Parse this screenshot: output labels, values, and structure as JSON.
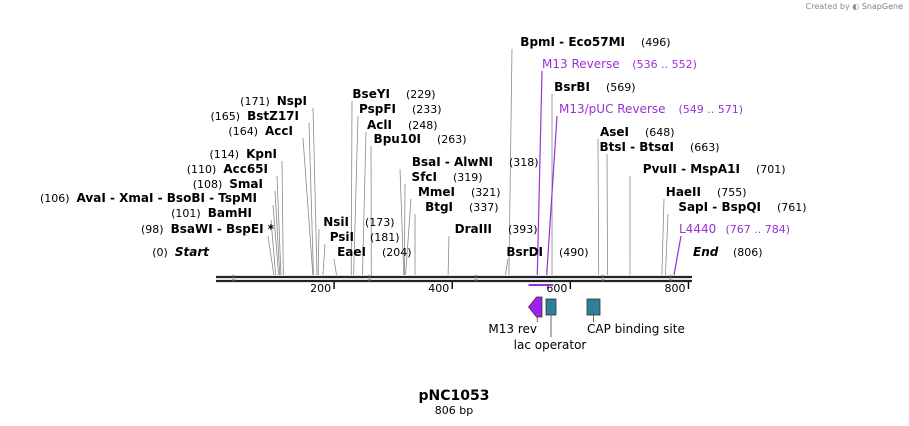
{
  "credit": {
    "prefix": "Created by",
    "brand": "SnapGene"
  },
  "plasmid": {
    "name": "pNC1053",
    "length_label": "806 bp"
  },
  "colors": {
    "text": "#000000",
    "primer": "#9b30d6",
    "leader_line": "#888888",
    "backbone": "#222222",
    "feature_teal": "#2e7f99",
    "feature_purple": "#a020f0"
  },
  "ruler": {
    "total_bp": 806,
    "tick_labels": [
      "200",
      "400",
      "600",
      "800"
    ]
  },
  "sites": [
    {
      "id": "start",
      "name": "Start",
      "pos_label": "(0)",
      "pos": 0,
      "style": "start"
    },
    {
      "id": "bsawi",
      "name": "BsaWI  -  BspEI *",
      "pos_label": "(98)",
      "pos": 98
    },
    {
      "id": "bamhi",
      "name": "BamHI",
      "pos_label": "(101)",
      "pos": 101
    },
    {
      "id": "avai",
      "name": "AvaI  -  XmaI  -  BsoBI  -  TspMI",
      "pos_label": "(106)",
      "pos": 106
    },
    {
      "id": "smai",
      "name": "SmaI",
      "pos_label": "(108)",
      "pos": 108
    },
    {
      "id": "acc65i",
      "name": "Acc65I",
      "pos_label": "(110)",
      "pos": 110
    },
    {
      "id": "kpni",
      "name": "KpnI",
      "pos_label": "(114)",
      "pos": 114
    },
    {
      "id": "acci",
      "name": "AccI",
      "pos_label": "(164)",
      "pos": 164
    },
    {
      "id": "bstz17i",
      "name": "BstZ17I",
      "pos_label": "(165)",
      "pos": 165
    },
    {
      "id": "nspi",
      "name": "NspI",
      "pos_label": "(171)",
      "pos": 171
    },
    {
      "id": "nsii",
      "name": "NsiI",
      "pos_label": "(173)",
      "pos": 173
    },
    {
      "id": "psii",
      "name": "PsiI",
      "pos_label": "(181)",
      "pos": 181
    },
    {
      "id": "eaei",
      "name": "EaeI",
      "pos_label": "(204)",
      "pos": 204
    },
    {
      "id": "bseyi",
      "name": "BseYI",
      "pos_label": "(229)",
      "pos": 229
    },
    {
      "id": "pspfi",
      "name": "PspFI",
      "pos_label": "(233)",
      "pos": 233
    },
    {
      "id": "acli",
      "name": "AclI",
      "pos_label": "(248)",
      "pos": 248
    },
    {
      "id": "bpu10i",
      "name": "Bpu10I",
      "pos_label": "(263)",
      "pos": 263
    },
    {
      "id": "bsai",
      "name": "BsaI  -  AlwNI",
      "pos_label": "(318)",
      "pos": 318
    },
    {
      "id": "sfci",
      "name": "SfcI",
      "pos_label": "(319)",
      "pos": 319
    },
    {
      "id": "mmei",
      "name": "MmeI",
      "pos_label": "(321)",
      "pos": 321
    },
    {
      "id": "btgi",
      "name": "BtgI",
      "pos_label": "(337)",
      "pos": 337
    },
    {
      "id": "draiii",
      "name": "DraIII",
      "pos_label": "(393)",
      "pos": 393
    },
    {
      "id": "bsrdi",
      "name": "BsrDI",
      "pos_label": "(490)",
      "pos": 490
    },
    {
      "id": "bpmi",
      "name": "BpmI  -  Eco57MI",
      "pos_label": "(496)",
      "pos": 496
    },
    {
      "id": "bsrbi",
      "name": "BsrBI",
      "pos_label": "(569)",
      "pos": 569
    },
    {
      "id": "asei",
      "name": "AseI",
      "pos_label": "(648)",
      "pos": 648
    },
    {
      "id": "btsi",
      "name": "BtsI  -  BtsαI",
      "pos_label": "(663)",
      "pos": 663
    },
    {
      "id": "pvuii",
      "name": "PvuII  -  MspA1I",
      "pos_label": "(701)",
      "pos": 701
    },
    {
      "id": "haeii",
      "name": "HaeII",
      "pos_label": "(755)",
      "pos": 755
    },
    {
      "id": "sapi",
      "name": "SapI  -  BspQI",
      "pos_label": "(761)",
      "pos": 761
    },
    {
      "id": "end",
      "name": "End",
      "pos_label": "(806)",
      "pos": 806,
      "style": "end"
    }
  ],
  "primers": [
    {
      "id": "m13rev",
      "name": "M13 Reverse",
      "range_label": "(536 .. 552)",
      "start": 536,
      "end": 552
    },
    {
      "id": "m13puc",
      "name": "M13/pUC Reverse",
      "range_label": "(549 .. 571)",
      "start": 549,
      "end": 571
    },
    {
      "id": "l4440",
      "name": "L4440",
      "range_label": "(767 .. 784)",
      "start": 767,
      "end": 784
    }
  ],
  "features": [
    {
      "id": "m13-rev",
      "name": "M13 rev",
      "type": "primer_bind",
      "start": 536,
      "end": 552
    },
    {
      "id": "lac-operator",
      "name": "lac operator",
      "type": "protein_bind",
      "start": 560,
      "end": 576
    },
    {
      "id": "cap-site",
      "name": "CAP binding site",
      "type": "protein_bind",
      "start": 608,
      "end": 629
    }
  ]
}
